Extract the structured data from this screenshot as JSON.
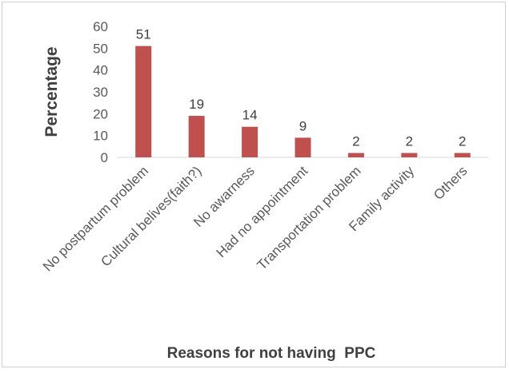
{
  "chart_data": {
    "type": "bar",
    "title": "",
    "xlabel": "Reasons for not having  PPC",
    "ylabel": "Percentage",
    "categories": [
      "No postpartum problem",
      "Cultural belives(faith?)",
      "No awarness",
      "Had no appointment",
      "Transportation problem",
      "Family activity",
      "Others"
    ],
    "values": [
      51,
      19,
      14,
      9,
      2,
      2,
      2
    ],
    "ylim": [
      0,
      60
    ],
    "yticks": [
      0,
      10,
      20,
      30,
      40,
      50,
      60
    ],
    "grid": false,
    "legend": "none",
    "bar_color": "#c0504d",
    "axis_color": "#d9d9d9"
  }
}
